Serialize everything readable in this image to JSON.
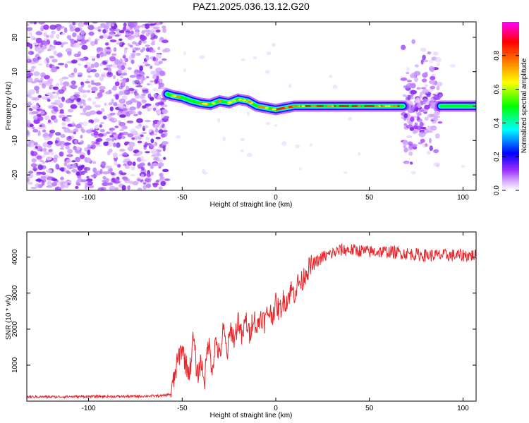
{
  "title": "PAZ1.2025.036.13.12.G20",
  "chart_data": [
    {
      "type": "heatmap",
      "xlabel": "Height of straight line (km)",
      "ylabel": "Frequency (Hz)",
      "xlim": [
        -133,
        107
      ],
      "ylim": [
        -24.5,
        24.5
      ],
      "x_ticks": [
        -100,
        -50,
        0,
        50,
        100
      ],
      "y_ticks": [
        -20,
        -10,
        0,
        10,
        20
      ],
      "colorbar": {
        "label": "Normalized spectral amplitude",
        "range": [
          0,
          1
        ],
        "ticks": [
          "0.0",
          "0.2",
          "0.4",
          "0.6",
          "0.8"
        ],
        "colormap": [
          "#ffffff",
          "#9b30ff",
          "#0000ff",
          "#00ffff",
          "#00ff00",
          "#ffff00",
          "#ff7f00",
          "#ff0000",
          "#ff00ff"
        ]
      },
      "frequency_track": {
        "x": [
          -58,
          -55,
          -50,
          -45,
          -40,
          -35,
          -30,
          -25,
          -20,
          -15,
          -10,
          -5,
          0,
          10,
          20,
          30,
          40,
          50,
          60,
          68
        ],
        "y": [
          3.5,
          3.0,
          2.5,
          1.5,
          0.8,
          0.5,
          1.5,
          1.0,
          2.0,
          1.5,
          0.0,
          -0.5,
          -1.0,
          0.0,
          0.0,
          0.0,
          0.0,
          0.0,
          0.0,
          0.0
        ]
      },
      "noise_regions": [
        {
          "x": [
            -133,
            -58
          ],
          "y": [
            -24.5,
            24.5
          ]
        },
        {
          "x": [
            68,
            88
          ],
          "y": [
            -20,
            20
          ]
        }
      ]
    },
    {
      "type": "line",
      "xlabel": "Height of straight line (km)",
      "ylabel": "SNR (10 * v/v)",
      "xlim": [
        -133,
        107
      ],
      "ylim": [
        0,
        4700
      ],
      "x_ticks": [
        -100,
        -50,
        0,
        50,
        100
      ],
      "y_ticks": [
        1000,
        2000,
        3000,
        4000
      ],
      "color": "#e8262a",
      "series": [
        {
          "x": [
            -133,
            -120,
            -100,
            -80,
            -60,
            -56,
            -54,
            -52,
            -50,
            -48,
            -46,
            -44,
            -42,
            -40,
            -38,
            -36,
            -34,
            -32,
            -30,
            -28,
            -26,
            -24,
            -22,
            -20,
            -18,
            -16,
            -14,
            -12,
            -10,
            -8,
            -6,
            -4,
            -2,
            0,
            2,
            4,
            6,
            8,
            10,
            12,
            14,
            16,
            18,
            20,
            25,
            30,
            35,
            40,
            50,
            60,
            70,
            80,
            90,
            100,
            107
          ],
          "y": [
            120,
            120,
            130,
            130,
            150,
            200,
            700,
            1200,
            1500,
            1000,
            800,
            1800,
            700,
            1100,
            600,
            1700,
            900,
            1700,
            1200,
            2000,
            1300,
            2000,
            1700,
            2300,
            1700,
            2300,
            1800,
            2400,
            2000,
            2400,
            2200,
            2500,
            2400,
            2700,
            2500,
            2800,
            2800,
            3100,
            3000,
            3300,
            3300,
            3600,
            3700,
            3800,
            4000,
            4100,
            4200,
            4200,
            4150,
            4150,
            4100,
            4050,
            4050,
            4050,
            4050
          ]
        }
      ]
    }
  ]
}
